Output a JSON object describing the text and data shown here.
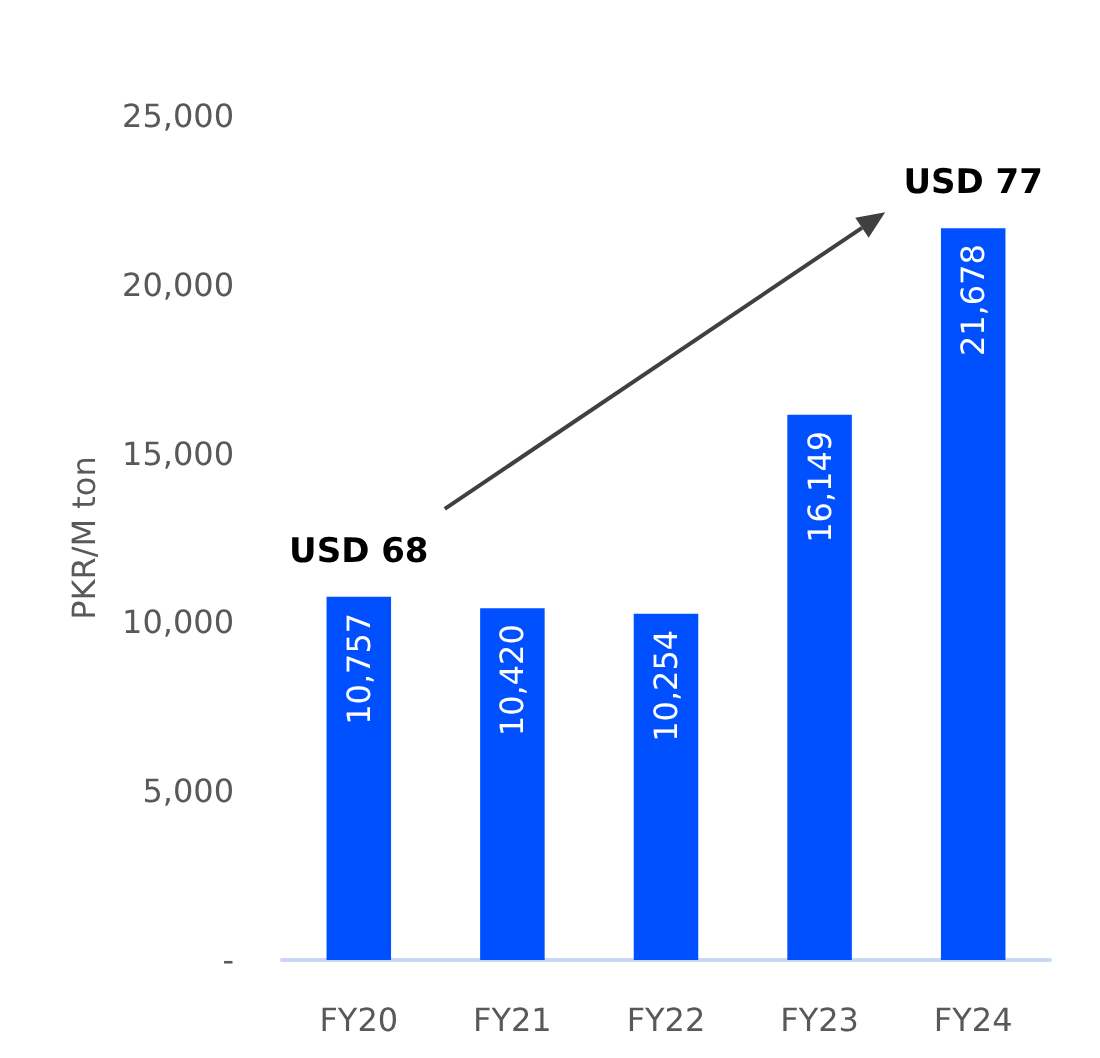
{
  "chart_data": {
    "type": "bar",
    "ylabel": "PKR/M ton",
    "categories": [
      "FY20",
      "FY21",
      "FY22",
      "FY23",
      "FY24"
    ],
    "values": [
      10757,
      10420,
      10254,
      16149,
      21678
    ],
    "color": "#0050ff",
    "value_labels": [
      "10,757",
      "10,420",
      "10,254",
      "16,149",
      "21,678"
    ],
    "ylim": [
      0,
      25000
    ],
    "yticks": [
      {
        "value": 0,
        "label": "-"
      },
      {
        "value": 5000,
        "label": "5,000"
      },
      {
        "value": 10000,
        "label": "10,000"
      },
      {
        "value": 15000,
        "label": "15,000"
      },
      {
        "value": 20000,
        "label": "20,000"
      },
      {
        "value": 25000,
        "label": "25,000"
      }
    ],
    "grid": false,
    "annotations": [
      {
        "text": "USD 68",
        "x": "FY20",
        "y": 10757
      },
      {
        "text": "USD 77",
        "x": "FY24",
        "y": 21678
      }
    ]
  }
}
